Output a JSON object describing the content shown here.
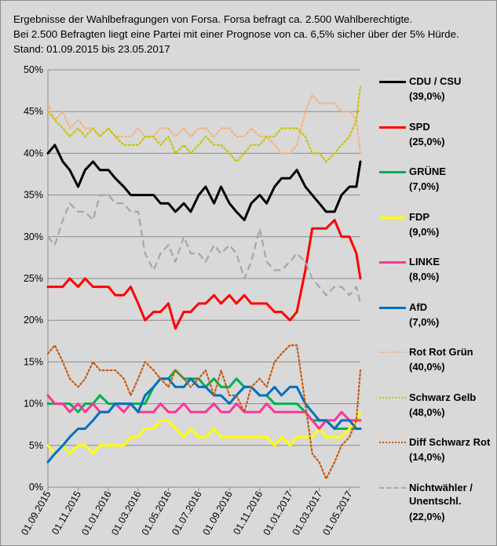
{
  "header": {
    "line1": "Ergebnisse der Wahlbefragungen von Forsa. Forsa befragt ca. 2.500  Wahlberechtigte.",
    "line2": "Bei 2.500  Befragten liegt eine Partei mit einer Prognose von ca. 6,5% sicher über der 5% Hürde.",
    "line3": "Stand: 01.09.2015   bis 23.05.2017"
  },
  "chart_data": {
    "type": "line",
    "ylim": [
      0,
      50
    ],
    "y_ticks": [
      "0%",
      "5%",
      "10%",
      "15%",
      "20%",
      "25%",
      "30%",
      "35%",
      "40%",
      "45%",
      "50%"
    ],
    "x_ticks": [
      "01.09.2015",
      "01.11.2015",
      "01.01.2016",
      "01.03.2016",
      "01.05.2016",
      "01.07.2016",
      "01.09.2016",
      "01.11.2016",
      "01.01.2017",
      "01.03.2017",
      "01.05.2017"
    ],
    "x_start": "01.09.2015",
    "x_end": "23.05.2017",
    "grid": true,
    "legend_position": "right",
    "series": [
      {
        "name": "CDU / CSU",
        "label": "(39,0%)",
        "color": "#000000",
        "dash": "solid",
        "x": [
          "01.09.2015",
          "15.09.2015",
          "01.10.2015",
          "15.10.2015",
          "01.11.2015",
          "15.11.2015",
          "01.12.2015",
          "15.12.2015",
          "01.01.2016",
          "15.01.2016",
          "01.02.2016",
          "15.02.2016",
          "01.03.2016",
          "15.03.2016",
          "01.04.2016",
          "15.04.2016",
          "01.05.2016",
          "15.05.2016",
          "01.06.2016",
          "15.06.2016",
          "01.07.2016",
          "15.07.2016",
          "01.08.2016",
          "15.08.2016",
          "01.09.2016",
          "15.09.2016",
          "01.10.2016",
          "15.10.2016",
          "01.11.2016",
          "15.11.2016",
          "01.12.2016",
          "15.12.2016",
          "01.01.2017",
          "15.01.2017",
          "01.02.2017",
          "15.02.2017",
          "01.03.2017",
          "15.03.2017",
          "01.04.2017",
          "15.04.2017",
          "01.05.2017",
          "15.05.2017",
          "23.05.2017"
        ],
        "values": [
          40,
          41,
          39,
          38,
          36,
          38,
          39,
          38,
          38,
          37,
          36,
          35,
          35,
          35,
          35,
          34,
          34,
          33,
          34,
          33,
          35,
          36,
          34,
          36,
          34,
          33,
          32,
          34,
          35,
          34,
          36,
          37,
          37,
          38,
          36,
          35,
          34,
          33,
          33,
          35,
          36,
          36,
          39
        ]
      },
      {
        "name": "SPD",
        "label": "(25,0%)",
        "color": "#ff0000",
        "dash": "solid",
        "x": [
          "01.09.2015",
          "15.09.2015",
          "01.10.2015",
          "15.10.2015",
          "01.11.2015",
          "15.11.2015",
          "01.12.2015",
          "15.12.2015",
          "01.01.2016",
          "15.01.2016",
          "01.02.2016",
          "15.02.2016",
          "01.03.2016",
          "15.03.2016",
          "01.04.2016",
          "15.04.2016",
          "01.05.2016",
          "15.05.2016",
          "01.06.2016",
          "15.06.2016",
          "01.07.2016",
          "15.07.2016",
          "01.08.2016",
          "15.08.2016",
          "01.09.2016",
          "15.09.2016",
          "01.10.2016",
          "15.10.2016",
          "01.11.2016",
          "15.11.2016",
          "01.12.2016",
          "15.12.2016",
          "01.01.2017",
          "15.01.2017",
          "01.02.2017",
          "15.02.2017",
          "01.03.2017",
          "15.03.2017",
          "01.04.2017",
          "15.04.2017",
          "01.05.2017",
          "15.05.2017",
          "23.05.2017"
        ],
        "values": [
          24,
          24,
          24,
          25,
          24,
          25,
          24,
          24,
          24,
          23,
          23,
          24,
          22,
          20,
          21,
          21,
          22,
          19,
          21,
          21,
          22,
          22,
          23,
          22,
          23,
          22,
          23,
          22,
          22,
          22,
          21,
          21,
          20,
          21,
          26,
          31,
          31,
          31,
          32,
          30,
          30,
          28,
          25
        ]
      },
      {
        "name": "GRÜNE",
        "label": "(7,0%)",
        "color": "#00b050",
        "dash": "solid",
        "x": [
          "01.09.2015",
          "15.09.2015",
          "01.10.2015",
          "15.10.2015",
          "01.11.2015",
          "15.11.2015",
          "01.12.2015",
          "15.12.2015",
          "01.01.2016",
          "15.01.2016",
          "01.02.2016",
          "15.02.2016",
          "01.03.2016",
          "15.03.2016",
          "01.04.2016",
          "15.04.2016",
          "01.05.2016",
          "15.05.2016",
          "01.06.2016",
          "15.06.2016",
          "01.07.2016",
          "15.07.2016",
          "01.08.2016",
          "15.08.2016",
          "01.09.2016",
          "15.09.2016",
          "01.10.2016",
          "15.10.2016",
          "01.11.2016",
          "15.11.2016",
          "01.12.2016",
          "15.12.2016",
          "01.01.2017",
          "15.01.2017",
          "01.02.2017",
          "15.02.2017",
          "01.03.2017",
          "15.03.2017",
          "01.04.2017",
          "15.04.2017",
          "01.05.2017",
          "15.05.2017",
          "23.05.2017"
        ],
        "values": [
          10,
          10,
          10,
          10,
          9,
          10,
          10,
          11,
          10,
          10,
          10,
          10,
          10,
          10,
          12,
          13,
          13,
          14,
          13,
          13,
          13,
          12,
          13,
          12,
          12,
          13,
          12,
          12,
          11,
          11,
          10,
          10,
          10,
          10,
          9,
          8,
          8,
          8,
          7,
          7,
          7,
          7,
          7
        ]
      },
      {
        "name": "FDP",
        "label": "(9,0%)",
        "color": "#ffff00",
        "dash": "solid",
        "x": [
          "01.09.2015",
          "15.09.2015",
          "01.10.2015",
          "15.10.2015",
          "01.11.2015",
          "15.11.2015",
          "01.12.2015",
          "15.12.2015",
          "01.01.2016",
          "15.01.2016",
          "01.02.2016",
          "15.02.2016",
          "01.03.2016",
          "15.03.2016",
          "01.04.2016",
          "15.04.2016",
          "01.05.2016",
          "15.05.2016",
          "01.06.2016",
          "15.06.2016",
          "01.07.2016",
          "15.07.2016",
          "01.08.2016",
          "15.08.2016",
          "01.09.2016",
          "15.09.2016",
          "01.10.2016",
          "15.10.2016",
          "01.11.2016",
          "15.11.2016",
          "01.12.2016",
          "15.12.2016",
          "01.01.2017",
          "15.01.2017",
          "01.02.2017",
          "15.02.2017",
          "01.03.2017",
          "15.03.2017",
          "01.04.2017",
          "15.04.2017",
          "01.05.2017",
          "15.05.2017",
          "23.05.2017"
        ],
        "values": [
          5,
          4,
          5,
          4,
          5,
          5,
          4,
          5,
          5,
          5,
          5,
          6,
          6,
          7,
          7,
          8,
          8,
          7,
          6,
          7,
          6,
          6,
          7,
          6,
          6,
          6,
          6,
          6,
          6,
          6,
          5,
          6,
          5,
          6,
          6,
          6,
          7,
          6,
          6,
          6,
          7,
          8,
          9
        ]
      },
      {
        "name": "LINKE",
        "label": "(8,0%)",
        "color": "#ff3399",
        "dash": "solid",
        "x": [
          "01.09.2015",
          "15.09.2015",
          "01.10.2015",
          "15.10.2015",
          "01.11.2015",
          "15.11.2015",
          "01.12.2015",
          "15.12.2015",
          "01.01.2016",
          "15.01.2016",
          "01.02.2016",
          "15.02.2016",
          "01.03.2016",
          "15.03.2016",
          "01.04.2016",
          "15.04.2016",
          "01.05.2016",
          "15.05.2016",
          "01.06.2016",
          "15.06.2016",
          "01.07.2016",
          "15.07.2016",
          "01.08.2016",
          "15.08.2016",
          "01.09.2016",
          "15.09.2016",
          "01.10.2016",
          "15.10.2016",
          "01.11.2016",
          "15.11.2016",
          "01.12.2016",
          "15.12.2016",
          "01.01.2017",
          "15.01.2017",
          "01.02.2017",
          "15.02.2017",
          "01.03.2017",
          "15.03.2017",
          "01.04.2017",
          "15.04.2017",
          "01.05.2017",
          "15.05.2017",
          "23.05.2017"
        ],
        "values": [
          11,
          10,
          10,
          9,
          10,
          9,
          10,
          9,
          9,
          10,
          9,
          10,
          9,
          9,
          9,
          10,
          9,
          9,
          10,
          9,
          9,
          9,
          10,
          9,
          9,
          10,
          9,
          9,
          9,
          10,
          9,
          9,
          9,
          9,
          9,
          8,
          7,
          8,
          8,
          9,
          8,
          8,
          8
        ]
      },
      {
        "name": "AfD",
        "label": "(7,0%)",
        "color": "#0070c0",
        "dash": "solid",
        "x": [
          "01.09.2015",
          "15.09.2015",
          "01.10.2015",
          "15.10.2015",
          "01.11.2015",
          "15.11.2015",
          "01.12.2015",
          "15.12.2015",
          "01.01.2016",
          "15.01.2016",
          "01.02.2016",
          "15.02.2016",
          "01.03.2016",
          "15.03.2016",
          "01.04.2016",
          "15.04.2016",
          "01.05.2016",
          "15.05.2016",
          "01.06.2016",
          "15.06.2016",
          "01.07.2016",
          "15.07.2016",
          "01.08.2016",
          "15.08.2016",
          "01.09.2016",
          "15.09.2016",
          "01.10.2016",
          "15.10.2016",
          "01.11.2016",
          "15.11.2016",
          "01.12.2016",
          "15.12.2016",
          "01.01.2017",
          "15.01.2017",
          "01.02.2017",
          "15.02.2017",
          "01.03.2017",
          "15.03.2017",
          "01.04.2017",
          "15.04.2017",
          "01.05.2017",
          "15.05.2017",
          "23.05.2017"
        ],
        "values": [
          3,
          4,
          5,
          6,
          7,
          7,
          8,
          9,
          9,
          10,
          10,
          10,
          9,
          11,
          12,
          13,
          13,
          12,
          12,
          13,
          12,
          12,
          11,
          11,
          10,
          11,
          12,
          12,
          11,
          11,
          12,
          11,
          12,
          12,
          10,
          9,
          8,
          8,
          7,
          8,
          8,
          7,
          7
        ]
      },
      {
        "name": "Rot Rot Grün",
        "label": "(40,0%)",
        "color": "#f4b183",
        "dash": "dot",
        "x": [
          "01.09.2015",
          "15.09.2015",
          "01.10.2015",
          "15.10.2015",
          "01.11.2015",
          "15.11.2015",
          "01.12.2015",
          "15.12.2015",
          "01.01.2016",
          "15.01.2016",
          "01.02.2016",
          "15.02.2016",
          "01.03.2016",
          "15.03.2016",
          "01.04.2016",
          "15.04.2016",
          "01.05.2016",
          "15.05.2016",
          "01.06.2016",
          "15.06.2016",
          "01.07.2016",
          "15.07.2016",
          "01.08.2016",
          "15.08.2016",
          "01.09.2016",
          "15.09.2016",
          "01.10.2016",
          "15.10.2016",
          "01.11.2016",
          "15.11.2016",
          "01.12.2016",
          "15.12.2016",
          "01.01.2017",
          "15.01.2017",
          "01.02.2017",
          "15.02.2017",
          "01.03.2017",
          "15.03.2017",
          "01.04.2017",
          "15.04.2017",
          "01.05.2017",
          "15.05.2017",
          "23.05.2017"
        ],
        "values": [
          46,
          44,
          45,
          43,
          44,
          43,
          43,
          42,
          43,
          42,
          42,
          42,
          43,
          42,
          42,
          43,
          43,
          42,
          43,
          42,
          43,
          43,
          42,
          43,
          43,
          42,
          42,
          43,
          42,
          42,
          41,
          40,
          40,
          41,
          45,
          47,
          46,
          46,
          46,
          45,
          45,
          44,
          40
        ]
      },
      {
        "name": "Schwarz Gelb",
        "label": "(48,0%)",
        "color": "#c6c600",
        "dash": "dot",
        "x": [
          "01.09.2015",
          "15.09.2015",
          "01.10.2015",
          "15.10.2015",
          "01.11.2015",
          "15.11.2015",
          "01.12.2015",
          "15.12.2015",
          "01.01.2016",
          "15.01.2016",
          "01.02.2016",
          "15.02.2016",
          "01.03.2016",
          "15.03.2016",
          "01.04.2016",
          "15.04.2016",
          "01.05.2016",
          "15.05.2016",
          "01.06.2016",
          "15.06.2016",
          "01.07.2016",
          "15.07.2016",
          "01.08.2016",
          "15.08.2016",
          "01.09.2016",
          "15.09.2016",
          "01.10.2016",
          "15.10.2016",
          "01.11.2016",
          "15.11.2016",
          "01.12.2016",
          "15.12.2016",
          "01.01.2017",
          "15.01.2017",
          "01.02.2017",
          "15.02.2017",
          "01.03.2017",
          "15.03.2017",
          "01.04.2017",
          "15.04.2017",
          "01.05.2017",
          "15.05.2017",
          "23.05.2017"
        ],
        "values": [
          45,
          44,
          43,
          42,
          43,
          42,
          43,
          42,
          43,
          42,
          41,
          41,
          41,
          42,
          42,
          41,
          42,
          40,
          41,
          40,
          41,
          42,
          41,
          41,
          40,
          39,
          40,
          41,
          41,
          42,
          42,
          43,
          43,
          43,
          42,
          40,
          40,
          39,
          40,
          41,
          42,
          44,
          48
        ]
      },
      {
        "name": "Diff Schwarz Rot",
        "label": "(14,0%)",
        "color": "#c55a11",
        "dash": "dot",
        "x": [
          "01.09.2015",
          "15.09.2015",
          "01.10.2015",
          "15.10.2015",
          "01.11.2015",
          "15.11.2015",
          "01.12.2015",
          "15.12.2015",
          "01.01.2016",
          "15.01.2016",
          "01.02.2016",
          "15.02.2016",
          "01.03.2016",
          "15.03.2016",
          "01.04.2016",
          "15.04.2016",
          "01.05.2016",
          "15.05.2016",
          "01.06.2016",
          "15.06.2016",
          "01.07.2016",
          "15.07.2016",
          "01.08.2016",
          "15.08.2016",
          "01.09.2016",
          "15.09.2016",
          "01.10.2016",
          "15.10.2016",
          "01.11.2016",
          "15.11.2016",
          "01.12.2016",
          "15.12.2016",
          "01.01.2017",
          "15.01.2017",
          "01.02.2017",
          "15.02.2017",
          "01.03.2017",
          "15.03.2017",
          "01.04.2017",
          "15.04.2017",
          "01.05.2017",
          "15.05.2017",
          "23.05.2017"
        ],
        "values": [
          16,
          17,
          15,
          13,
          12,
          13,
          15,
          14,
          14,
          14,
          13,
          11,
          13,
          15,
          14,
          13,
          12,
          14,
          13,
          12,
          13,
          14,
          11,
          14,
          11,
          11,
          9,
          12,
          13,
          12,
          15,
          16,
          17,
          17,
          10,
          4,
          3,
          1,
          3,
          5,
          6,
          8,
          14
        ]
      },
      {
        "name": "Nichtwähler / Unentschl.",
        "name_line1": "Nichtwähler /",
        "name_line2": "Unentschl.",
        "label": "(22,0%)",
        "color": "#a6a6a6",
        "dash": "dash",
        "x": [
          "01.09.2015",
          "15.09.2015",
          "01.10.2015",
          "15.10.2015",
          "01.11.2015",
          "15.11.2015",
          "01.12.2015",
          "15.12.2015",
          "01.01.2016",
          "15.01.2016",
          "01.02.2016",
          "15.02.2016",
          "01.03.2016",
          "15.03.2016",
          "01.04.2016",
          "15.04.2016",
          "01.05.2016",
          "15.05.2016",
          "01.06.2016",
          "15.06.2016",
          "01.07.2016",
          "15.07.2016",
          "01.08.2016",
          "15.08.2016",
          "01.09.2016",
          "15.09.2016",
          "01.10.2016",
          "15.10.2016",
          "01.11.2016",
          "15.11.2016",
          "01.12.2016",
          "15.12.2016",
          "01.01.2017",
          "15.01.2017",
          "01.02.2017",
          "15.02.2017",
          "01.03.2017",
          "15.03.2017",
          "01.04.2017",
          "15.04.2017",
          "01.05.2017",
          "15.05.2017",
          "23.05.2017"
        ],
        "values": [
          30,
          29,
          32,
          34,
          33,
          33,
          32,
          35,
          35,
          34,
          34,
          33,
          33,
          28,
          26,
          28,
          29,
          27,
          30,
          28,
          28,
          27,
          29,
          28,
          29,
          28,
          25,
          27,
          31,
          27,
          26,
          26,
          27,
          28,
          27,
          25,
          24,
          23,
          24,
          24,
          23,
          24,
          22
        ]
      }
    ]
  }
}
